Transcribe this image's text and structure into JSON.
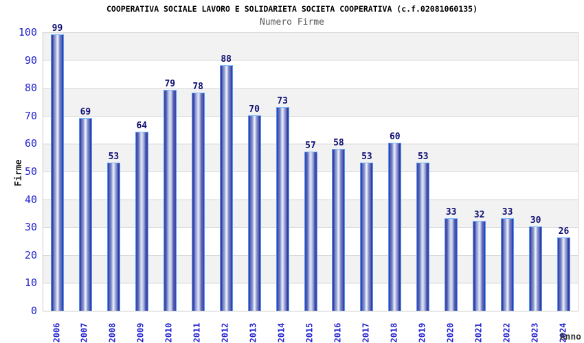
{
  "header": {
    "title": "COOPERATIVA SOCIALE LAVORO E SOLIDARIETA SOCIETA COOPERATIVA (c.f.02081060135)",
    "subtitle": "Numero Firme"
  },
  "chart_data": {
    "type": "bar",
    "title": "COOPERATIVA SOCIALE LAVORO E SOLIDARIETA SOCIETA COOPERATIVA (c.f.02081060135)",
    "subtitle": "Numero Firme",
    "categories": [
      "2006",
      "2007",
      "2008",
      "2009",
      "2010",
      "2011",
      "2012",
      "2013",
      "2014",
      "2015",
      "2016",
      "2017",
      "2018",
      "2019",
      "2020",
      "2021",
      "2022",
      "2023",
      "2024"
    ],
    "values": [
      99,
      69,
      53,
      64,
      79,
      78,
      88,
      70,
      73,
      57,
      58,
      53,
      60,
      53,
      33,
      32,
      33,
      30,
      26
    ],
    "xlabel": "Anno",
    "ylabel": "Firme",
    "ylim": [
      0,
      100
    ],
    "ytick_step": 10,
    "ytick_labels": [
      "0",
      "10",
      "20",
      "30",
      "40",
      "50",
      "60",
      "70",
      "80",
      "90",
      "100"
    ],
    "grid": true,
    "legend": "none",
    "bar_value_labels_shown": true
  },
  "colors": {
    "title": "#000000",
    "subtitle": "#595959",
    "axis_tick_blue": "#2424d0",
    "value_label_navy": "#0e0e73",
    "bar_edge_dark": "#2a2f92",
    "bar_center_light": "#eef3fd",
    "bar_border_lightblue": "#4d9aff",
    "band_gray": "#f2f2f2",
    "band_white": "#ffffff",
    "gridline": "#d9d9d9",
    "xaxis_title": "#333333"
  }
}
